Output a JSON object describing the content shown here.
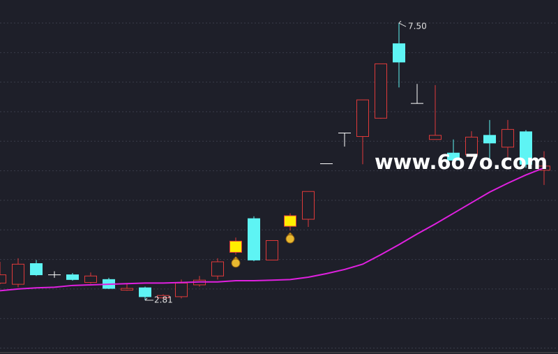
{
  "chart_data": {
    "type": "candlestick",
    "ylim": [
      1.9,
      7.89
    ],
    "yticks": [
      2.0,
      2.5,
      3.0,
      3.5,
      4.0,
      4.5,
      5.0,
      5.5,
      6.0,
      6.5,
      7.0,
      7.5
    ],
    "grid": true,
    "tick_labels": false,
    "up_color": "#e03a3a",
    "down_color": "#5ef4f4",
    "flat_color": "#ffffff",
    "candles": [
      {
        "open": 3.1,
        "high": 3.46,
        "low": 3.08,
        "close": 3.24
      },
      {
        "open": 3.08,
        "high": 3.52,
        "low": 3.03,
        "close": 3.42
      },
      {
        "open": 3.43,
        "high": 3.49,
        "low": 3.22,
        "close": 3.24
      },
      {
        "open": 3.24,
        "high": 3.3,
        "low": 3.19,
        "close": 3.24
      },
      {
        "open": 3.24,
        "high": 3.27,
        "low": 3.14,
        "close": 3.16
      },
      {
        "open": 3.11,
        "high": 3.28,
        "low": 3.09,
        "close": 3.22
      },
      {
        "open": 3.16,
        "high": 3.19,
        "low": 3.0,
        "close": 3.01
      },
      {
        "open": 2.98,
        "high": 3.1,
        "low": 2.97,
        "close": 3.01
      },
      {
        "open": 3.02,
        "high": 3.04,
        "low": 2.81,
        "close": 2.87
      },
      {
        "open": 2.85,
        "high": 2.91,
        "low": 2.83,
        "close": 2.89
      },
      {
        "open": 2.87,
        "high": 3.16,
        "low": 2.84,
        "close": 3.1
      },
      {
        "open": 3.07,
        "high": 3.22,
        "low": 3.04,
        "close": 3.15
      },
      {
        "open": 3.22,
        "high": 3.52,
        "low": 3.16,
        "close": 3.46
      },
      {
        "open": 3.62,
        "high": 3.87,
        "low": 3.58,
        "close": 3.81,
        "color": "#ffee00",
        "signal": true
      },
      {
        "open": 4.19,
        "high": 4.23,
        "low": 3.47,
        "close": 3.49
      },
      {
        "open": 3.49,
        "high": 3.82,
        "low": 3.49,
        "close": 3.82
      },
      {
        "open": 4.06,
        "high": 4.28,
        "low": 3.99,
        "close": 4.24,
        "color": "#ffee00",
        "signal": true
      },
      {
        "open": 4.18,
        "high": 4.65,
        "low": 4.05,
        "close": 4.65
      },
      {
        "open": 5.12,
        "high": 5.12,
        "low": 5.12,
        "close": 5.12
      },
      {
        "open": 5.64,
        "high": 5.64,
        "low": 5.41,
        "close": 5.64
      },
      {
        "open": 5.58,
        "high": 6.2,
        "low": 5.11,
        "close": 6.2
      },
      {
        "open": 5.89,
        "high": 6.81,
        "low": 5.88,
        "close": 6.81
      },
      {
        "open": 7.15,
        "high": 7.5,
        "low": 6.41,
        "close": 6.84
      },
      {
        "open": 6.14,
        "high": 6.47,
        "low": 6.14,
        "close": 6.14
      },
      {
        "open": 5.53,
        "high": 6.45,
        "low": 5.53,
        "close": 5.6
      },
      {
        "open": 5.3,
        "high": 5.53,
        "low": 5.05,
        "close": 5.18
      },
      {
        "open": 5.27,
        "high": 5.67,
        "low": 5.23,
        "close": 5.57
      },
      {
        "open": 5.6,
        "high": 5.86,
        "low": 5.17,
        "close": 5.47
      },
      {
        "open": 5.4,
        "high": 5.86,
        "low": 5.23,
        "close": 5.7
      },
      {
        "open": 5.66,
        "high": 5.69,
        "low": 5.05,
        "close": 5.11
      },
      {
        "open": 5.01,
        "high": 5.33,
        "low": 4.76,
        "close": 5.08
      }
    ],
    "ma": {
      "color": "#e020e0",
      "values": [
        2.97,
        3.0,
        3.02,
        3.03,
        3.06,
        3.07,
        3.08,
        3.09,
        3.1,
        3.1,
        3.11,
        3.12,
        3.12,
        3.14,
        3.14,
        3.15,
        3.16,
        3.2,
        3.26,
        3.33,
        3.42,
        3.58,
        3.75,
        3.93,
        4.1,
        4.28,
        4.46,
        4.64,
        4.79,
        4.93,
        5.05
      ]
    },
    "high_label": {
      "value": 7.5,
      "label": "7.50"
    },
    "low_label": {
      "value": 2.81,
      "label": "2.81"
    },
    "watermark": "www.6o7o.com"
  }
}
